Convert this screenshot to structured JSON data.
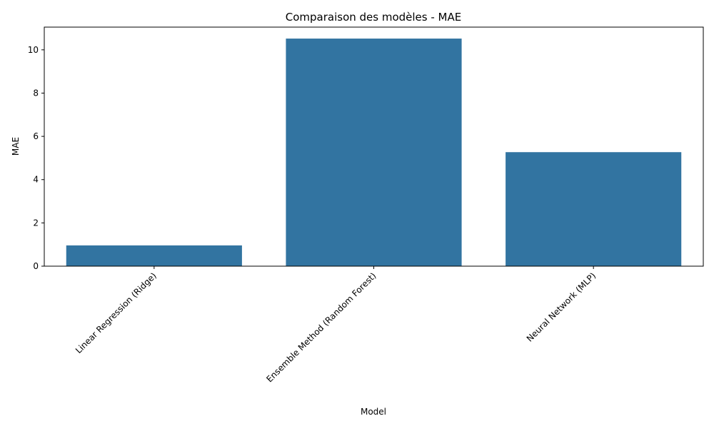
{
  "chart_data": {
    "type": "bar",
    "title": "Comparaison des modèles - MAE",
    "xlabel": "Model",
    "ylabel": "MAE",
    "categories": [
      "Linear Regression (Ridge)",
      "Ensemble Method (Random Forest)",
      "Neural Network (MLP)"
    ],
    "values": [
      0.96,
      10.52,
      5.27
    ],
    "ylim": [
      0,
      11.05
    ],
    "yticks": [
      0,
      2,
      4,
      6,
      8,
      10
    ],
    "bar_color": "#3274a1",
    "grid": false,
    "xtick_rotation": 45
  }
}
